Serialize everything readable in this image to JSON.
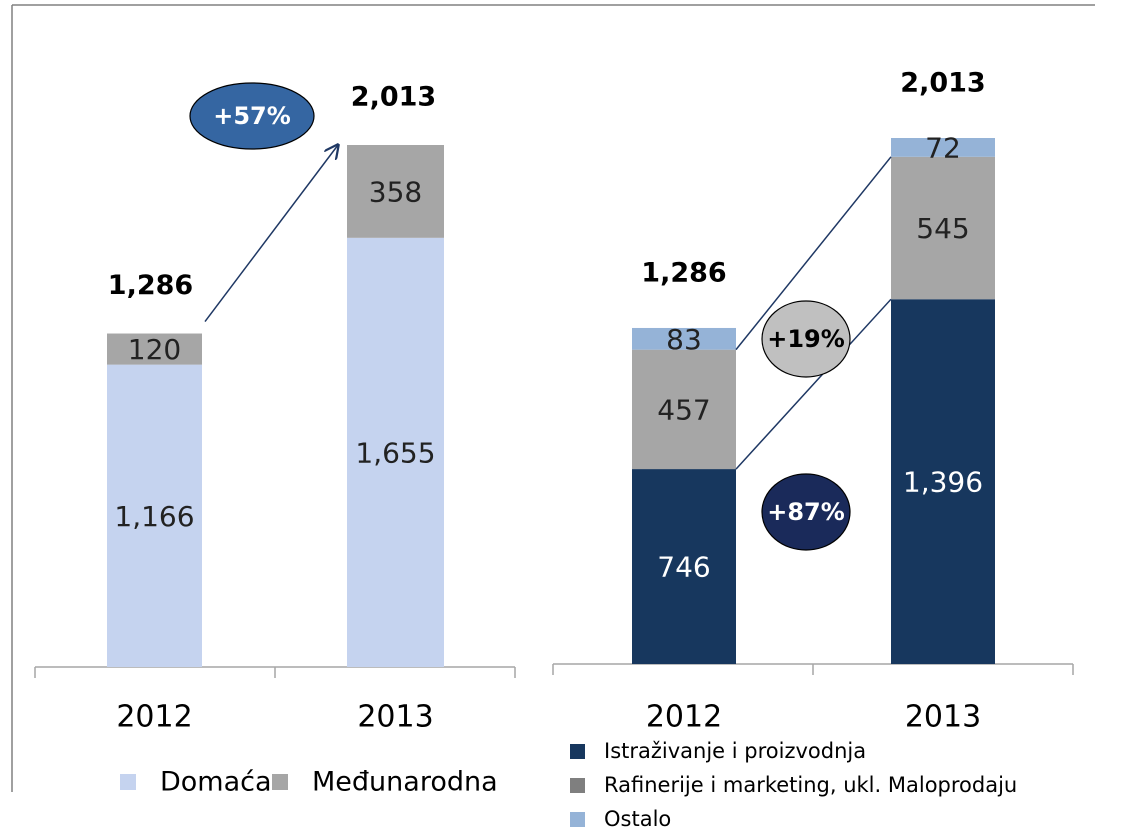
{
  "chart_data": [
    {
      "type": "stacked_bar",
      "categories": [
        "2012",
        "2013"
      ],
      "series": [
        {
          "name": "Domaća",
          "color": "#c5d3ef",
          "values": [
            1166,
            1655
          ],
          "value_labels": [
            "1,166",
            "1,655"
          ]
        },
        {
          "name": "Međunarodna",
          "color": "#a6a6a6",
          "values": [
            120,
            358
          ],
          "value_labels": [
            "120",
            "358"
          ]
        }
      ],
      "totals": [
        1286,
        2013
      ],
      "total_labels": [
        "1,286",
        "2,013"
      ],
      "annotations": [
        "+57%"
      ],
      "legend": "horizontal"
    },
    {
      "type": "stacked_bar",
      "categories": [
        "2012",
        "2013"
      ],
      "series": [
        {
          "name": "Istraživanje i proizvodnja",
          "color": "#17375e",
          "values": [
            746,
            1396
          ],
          "value_labels": [
            "746",
            "1,396"
          ]
        },
        {
          "name": "Rafinerije i marketing, ukl. Maloprodaju",
          "color": "#a6a6a6",
          "values": [
            457,
            545
          ],
          "value_labels": [
            "457",
            "545"
          ]
        },
        {
          "name": "Ostalo",
          "color": "#95b3d7",
          "values": [
            83,
            72
          ],
          "value_labels": [
            "83",
            "72"
          ]
        }
      ],
      "totals": [
        1286,
        2013
      ],
      "total_labels": [
        "1,286",
        "2,013"
      ],
      "annotations": [
        "+19%",
        "+87%"
      ],
      "legend": "vertical"
    }
  ]
}
